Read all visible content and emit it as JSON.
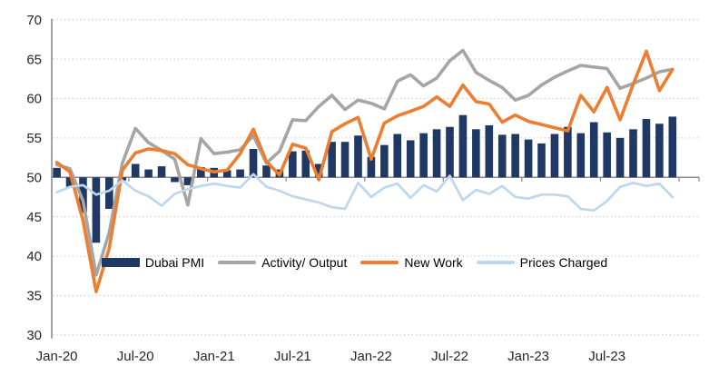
{
  "chart_data": {
    "type": "bar+line",
    "ylim": [
      30,
      70
    ],
    "y_ticks": [
      30,
      35,
      40,
      45,
      50,
      55,
      60,
      65,
      70
    ],
    "y_tick_step": 5,
    "baseline_value": 50,
    "grid": "horizontal dotted",
    "legend_position": "inside bottom center",
    "x_tick_labels": [
      "Jan-20",
      "Jul-20",
      "Jan-21",
      "Jul-21",
      "Jan-22",
      "Jul-22",
      "Jan-23",
      "Jul-23"
    ],
    "months": [
      "Jan-20",
      "Feb-20",
      "Mar-20",
      "Apr-20",
      "May-20",
      "Jun-20",
      "Jul-20",
      "Aug-20",
      "Sep-20",
      "Oct-20",
      "Nov-20",
      "Dec-20",
      "Jan-21",
      "Feb-21",
      "Mar-21",
      "Apr-21",
      "May-21",
      "Jun-21",
      "Jul-21",
      "Aug-21",
      "Sep-21",
      "Oct-21",
      "Nov-21",
      "Dec-21",
      "Jan-22",
      "Feb-22",
      "Mar-22",
      "Apr-22",
      "May-22",
      "Jun-22",
      "Jul-22",
      "Aug-22",
      "Sep-22",
      "Oct-22",
      "Nov-22",
      "Dec-22",
      "Jan-23",
      "Feb-23",
      "Mar-23",
      "Apr-23",
      "May-23",
      "Jun-23",
      "Jul-23",
      "Aug-23",
      "Sep-23",
      "Oct-23",
      "Nov-23",
      "Dec-23"
    ],
    "series": [
      {
        "name": "Dubai PMI",
        "type": "bar",
        "color": "#1F3864",
        "values": [
          51.2,
          48.8,
          45.5,
          41.7,
          46.0,
          49.6,
          51.7,
          51.0,
          51.4,
          49.4,
          49.0,
          51.3,
          51.2,
          50.9,
          51.0,
          53.6,
          51.5,
          51.0,
          53.3,
          53.4,
          51.7,
          54.5,
          54.5,
          55.3,
          52.6,
          54.1,
          55.5,
          54.7,
          55.6,
          56.1,
          56.4,
          57.9,
          56.1,
          56.6,
          55.4,
          55.5,
          54.8,
          54.3,
          55.5,
          56.4,
          55.6,
          57.0,
          55.7,
          55.0,
          56.1,
          57.4,
          56.8,
          57.7
        ]
      },
      {
        "name": "Activity/ Output",
        "type": "line",
        "color": "#A5A5A5",
        "values": [
          51.6,
          51.1,
          47.0,
          37.6,
          43.0,
          51.8,
          56.2,
          54.4,
          53.4,
          52.3,
          46.5,
          54.9,
          53.0,
          53.2,
          53.5,
          55.3,
          51.8,
          53.3,
          57.3,
          57.2,
          59.0,
          60.4,
          58.6,
          59.8,
          59.4,
          58.7,
          62.2,
          63.0,
          61.6,
          62.6,
          64.8,
          66.1,
          63.3,
          62.3,
          61.4,
          59.8,
          60.4,
          61.7,
          62.7,
          63.5,
          64.2,
          64.0,
          63.8,
          61.3,
          61.9,
          62.6,
          63.4,
          63.7
        ]
      },
      {
        "name": "New Work",
        "type": "line",
        "color": "#ED7D31",
        "values": [
          51.9,
          50.7,
          44.5,
          35.5,
          41.0,
          50.9,
          53.1,
          53.6,
          53.4,
          53.0,
          51.6,
          51.1,
          50.7,
          50.9,
          53.0,
          56.1,
          52.0,
          50.3,
          54.2,
          53.7,
          49.7,
          55.8,
          56.8,
          57.6,
          52.3,
          56.9,
          57.8,
          58.4,
          59.0,
          60.2,
          59.0,
          61.7,
          59.6,
          59.3,
          57.0,
          57.9,
          57.1,
          56.7,
          56.3,
          55.9,
          60.4,
          58.3,
          61.4,
          57.3,
          61.8,
          66.0,
          61.0,
          63.7
        ]
      },
      {
        "name": "Prices Charged",
        "type": "line",
        "color": "#BDD7EE",
        "values": [
          48.1,
          48.8,
          49.0,
          47.8,
          48.3,
          49.6,
          48.3,
          47.6,
          46.4,
          47.9,
          48.5,
          48.9,
          49.2,
          48.9,
          48.7,
          50.4,
          48.8,
          48.3,
          47.6,
          47.2,
          46.8,
          46.2,
          46.0,
          49.3,
          47.5,
          48.7,
          49.2,
          47.4,
          49.0,
          48.2,
          50.2,
          47.1,
          48.4,
          47.9,
          48.9,
          47.5,
          47.3,
          47.8,
          47.8,
          47.6,
          46.0,
          45.8,
          47.0,
          48.8,
          49.3,
          48.9,
          49.2,
          47.5
        ]
      }
    ],
    "colors": {
      "axis": "#8C8C8C",
      "gridline": "#D4D4D4",
      "tick_text": "#262626"
    }
  }
}
